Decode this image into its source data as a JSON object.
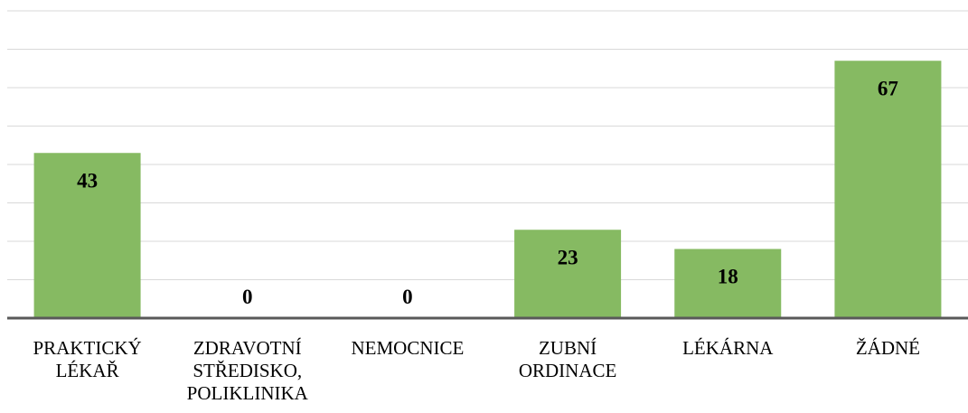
{
  "chart_data": {
    "type": "bar",
    "categories": [
      "PRAKTICKÝ LÉKAŘ",
      "ZDRAVOTNÍ STŘEDISKO, POLIKLINIKA",
      "NEMOCNICE",
      "ZUBNÍ ORDINACE",
      "LÉKÁRNA",
      "ŽÁDNÉ"
    ],
    "values": [
      43,
      0,
      0,
      23,
      18,
      67
    ],
    "color": "#86ba62",
    "ylim": [
      0,
      80
    ],
    "yticks": [
      0,
      10,
      20,
      30,
      40,
      50,
      60,
      70,
      80
    ],
    "grid": true
  }
}
